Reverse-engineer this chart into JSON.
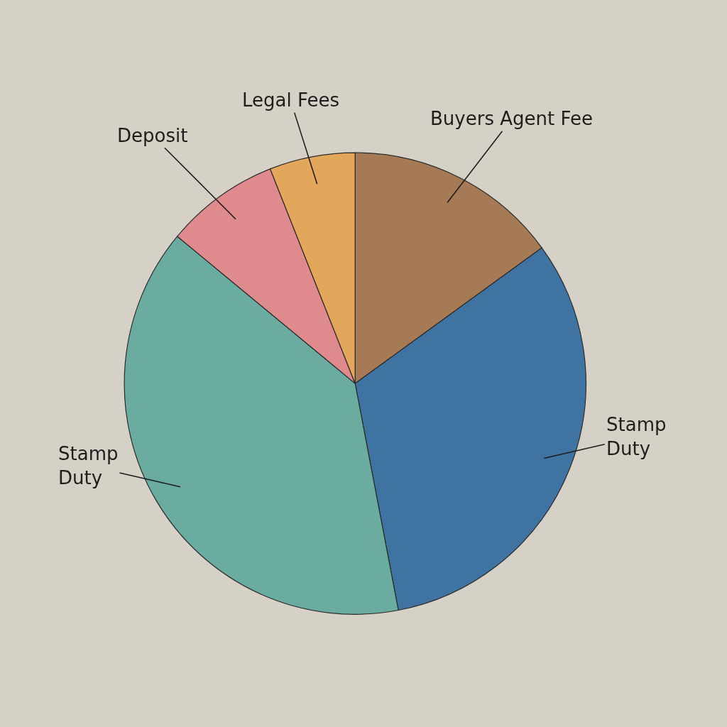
{
  "chart_data": {
    "type": "pie",
    "categories": [
      "Buyers Agent Fee",
      "Stamp Duty",
      "Stamp Duty",
      "Deposit",
      "Legal Fees"
    ],
    "values": [
      15,
      32,
      39,
      8,
      6
    ],
    "colors": [
      "#a67a55",
      "#3f74a2",
      "#6aaca0",
      "#df8a8c",
      "#e3a75c"
    ]
  }
}
